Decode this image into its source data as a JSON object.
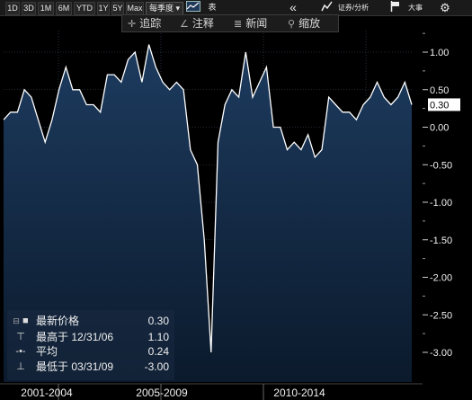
{
  "toolbar": {
    "periods": [
      "1D",
      "3D",
      "1M",
      "6M",
      "YTD",
      "1Y",
      "5Y",
      "Max"
    ],
    "frequency": "每季度",
    "chart_type_label": "表",
    "compare_label": "证券/分析",
    "event_label": "大事",
    "icons": [
      "area-chart-icon",
      "double-chevron-left-icon",
      "chart-analysis-icon",
      "flag-icon",
      "gear-icon"
    ]
  },
  "tools": {
    "track": "追踪",
    "annotate": "注释",
    "news": "新闻",
    "zoom": "缩放"
  },
  "legend": {
    "rows": [
      {
        "symbol": "■",
        "label": "最新价格",
        "value": "0.30"
      },
      {
        "symbol": "⊤",
        "label": "最高于 12/31/06",
        "value": "1.10"
      },
      {
        "symbol": "-•-",
        "label": "平均",
        "value": "0.24"
      },
      {
        "symbol": "⊥",
        "label": "最低于 03/31/09",
        "value": "-3.00"
      }
    ]
  },
  "last_value_tag": "0.30",
  "colors": {
    "background": "#000000",
    "area_top": "#1d3b5f",
    "area_bottom": "#0b1a2c",
    "line": "#ffffff",
    "tag_bg": "#ffffff",
    "tag_text": "#000000"
  },
  "chart_data": {
    "type": "area",
    "x_labels": [
      "2001-2004",
      "2005-2009",
      "2010-2014"
    ],
    "ylim": [
      -3.25,
      1.4
    ],
    "yticks": [
      "1.00",
      "0.50",
      "0.00",
      "-0.50",
      "-1.00",
      "-1.50",
      "-2.00",
      "-2.50",
      "-3.00"
    ],
    "ytick_values": [
      1.0,
      0.5,
      0.0,
      -0.5,
      -1.0,
      -1.5,
      -2.0,
      -2.5,
      -3.0
    ],
    "series": [
      {
        "values": [
          0.1,
          0.2,
          0.2,
          0.5,
          0.4,
          0.1,
          -0.2,
          0.1,
          0.5,
          0.8,
          0.5,
          0.5,
          0.3,
          0.3,
          0.2,
          0.7,
          0.7,
          0.6,
          0.9,
          1.0,
          0.6,
          1.1,
          0.8,
          0.6,
          0.5,
          0.6,
          0.5,
          -0.3,
          -0.5,
          -1.5,
          -3.0,
          -0.2,
          0.3,
          0.5,
          0.4,
          1.0,
          0.4,
          0.6,
          0.8,
          0.0,
          0.0,
          -0.3,
          -0.2,
          -0.3,
          -0.1,
          -0.4,
          -0.3,
          0.4,
          0.3,
          0.2,
          0.2,
          0.1,
          0.3,
          0.4,
          0.6,
          0.4,
          0.3,
          0.4,
          0.6,
          0.3
        ]
      }
    ]
  }
}
